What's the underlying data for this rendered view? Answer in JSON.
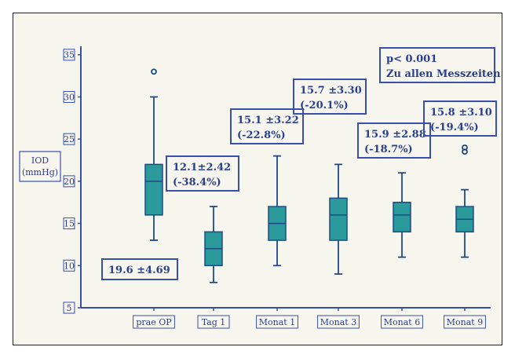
{
  "colors": {
    "axis": "#3a4fa8",
    "box_fill": "#2a9a9a",
    "box_stroke": "#1f4a8a",
    "text": "#2b3f8f",
    "background": "#f7f6ee"
  },
  "chart_data": {
    "type": "boxplot",
    "title": "",
    "xlabel": "",
    "ylabel": "IOD (mmHg)",
    "ylabel_lines": [
      "IOD",
      "(mmHg)"
    ],
    "ylim": [
      5,
      36
    ],
    "yticks": [
      5,
      10,
      15,
      20,
      25,
      30,
      35
    ],
    "grid": false,
    "categories": [
      "prae OP",
      "Tag 1",
      "Monat 1",
      "Monat 3",
      "Monat 6",
      "Monat 9"
    ],
    "boxes": [
      {
        "min": 13,
        "q1": 16,
        "median": 20,
        "q3": 22,
        "max": 30,
        "outliers": [
          33
        ]
      },
      {
        "min": 8,
        "q1": 10,
        "median": 12,
        "q3": 14,
        "max": 17,
        "outliers": []
      },
      {
        "min": 10,
        "q1": 13,
        "median": 15,
        "q3": 17,
        "max": 23,
        "outliers": []
      },
      {
        "min": 9,
        "q1": 13,
        "median": 16,
        "q3": 18,
        "max": 22,
        "outliers": []
      },
      {
        "min": 11,
        "q1": 14,
        "median": 16,
        "q3": 17.5,
        "max": 21,
        "outliers": []
      },
      {
        "min": 11,
        "q1": 14,
        "median": 15.5,
        "q3": 17,
        "max": 19,
        "outliers": [
          23.5,
          24
        ]
      }
    ],
    "annotations": [
      {
        "lines": [
          "19.6 ±4.69"
        ]
      },
      {
        "lines": [
          "12.1±2.42",
          "(-38.4%)"
        ]
      },
      {
        "lines": [
          "15.1 ±3.22",
          "(-22.8%)"
        ]
      },
      {
        "lines": [
          "15.7 ±3.30",
          "(-20.1%)"
        ]
      },
      {
        "lines": [
          "15.9 ±2.88",
          "(-18.7%)"
        ]
      },
      {
        "lines": [
          "15.8 ±3.10",
          "(-19.4%)"
        ]
      },
      {
        "lines": [
          "p< 0.001",
          "Zu allen Messzeiten"
        ]
      }
    ]
  }
}
